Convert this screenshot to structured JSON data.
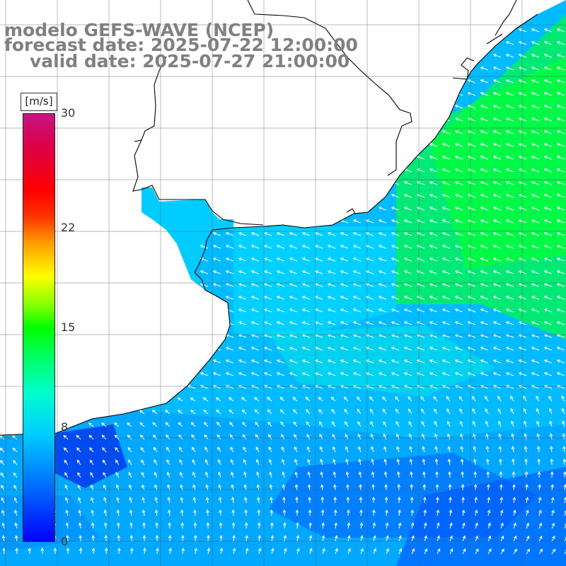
{
  "titles": {
    "line1": "modelo GEFS-WAVE (NCEP)",
    "line2": "forecast date: 2025-07-22 12:00:00",
    "line3": "valid date: 2025-07-27 21:00:00"
  },
  "colorbar": {
    "unit": "[m/s]",
    "ticks": [
      {
        "label": "30",
        "value": 30
      },
      {
        "label": "22",
        "value": 22
      },
      {
        "label": "15",
        "value": 15
      },
      {
        "label": "8",
        "value": 8
      },
      {
        "label": "0",
        "value": 0
      }
    ],
    "range": [
      0,
      30
    ],
    "colors": [
      "#0000ff",
      "#00ccff",
      "#00ff66",
      "#00ff00",
      "#ffff00",
      "#ff0000",
      "#c71585"
    ]
  },
  "colors": {
    "land": "#ffffff",
    "coastline": "#000000",
    "grid": "#555555",
    "arrows": "#ffffff",
    "title": "#808080"
  },
  "map": {
    "variable": "wind speed and direction",
    "region": "southern Brazil / Uruguay / Río de la Plata coast"
  }
}
